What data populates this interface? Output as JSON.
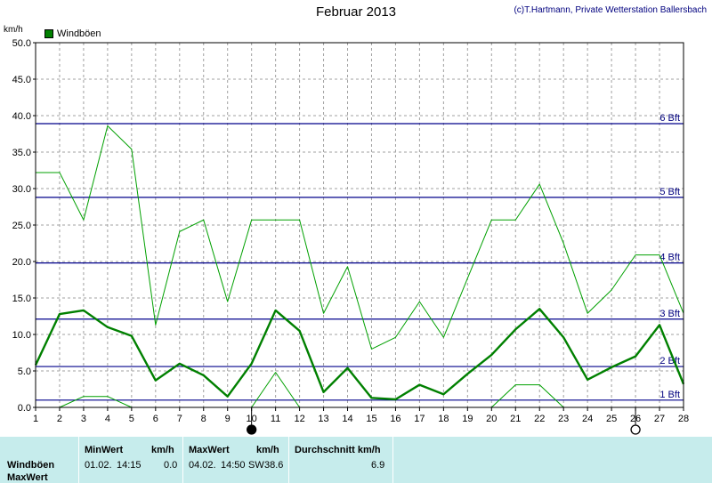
{
  "header": {
    "title": "Februar 2013",
    "credit": "(c)T.Hartmann, Private Wetterstation Ballersbach",
    "unit": "km/h"
  },
  "legend": {
    "label": "Windböen"
  },
  "chart_data": {
    "type": "line",
    "ylabel": "km/h",
    "ylim": [
      0,
      50
    ],
    "yticks": [
      "0.0",
      "5.0",
      "10.0",
      "15.0",
      "20.0",
      "25.0",
      "30.0",
      "35.0",
      "40.0",
      "45.0",
      "50.0"
    ],
    "x": [
      1,
      2,
      3,
      4,
      5,
      6,
      7,
      8,
      9,
      10,
      11,
      12,
      13,
      14,
      15,
      16,
      17,
      18,
      19,
      20,
      21,
      22,
      23,
      24,
      25,
      26,
      27,
      28
    ],
    "xlim": [
      1,
      28
    ],
    "grid": true,
    "legend_position": "top-left",
    "series": [
      {
        "name": "Windböen",
        "role": "max",
        "color": "#00a000",
        "x": [
          1,
          2,
          3,
          4,
          5,
          6,
          7,
          8,
          9,
          10,
          11,
          12,
          13,
          14,
          15,
          16,
          17,
          18,
          19,
          20,
          21,
          22,
          23,
          24,
          25,
          26,
          27,
          28
        ],
        "values": [
          32.2,
          32.2,
          25.7,
          38.6,
          35.4,
          11.3,
          24.1,
          25.7,
          14.5,
          25.7,
          25.7,
          25.7,
          12.9,
          19.3,
          8.0,
          9.6,
          14.5,
          9.6,
          17.7,
          25.7,
          25.7,
          30.6,
          22.5,
          12.9,
          16.1,
          20.9,
          20.9,
          12.9
        ]
      },
      {
        "name": "Windböen",
        "role": "avg",
        "color": "#008000",
        "x": [
          1,
          2,
          3,
          4,
          5,
          6,
          7,
          8,
          9,
          10,
          11,
          12,
          13,
          14,
          15,
          16,
          17,
          18,
          19,
          20,
          21,
          22,
          23,
          24,
          25,
          26,
          27,
          28
        ],
        "values": [
          5.8,
          12.8,
          13.3,
          11.0,
          9.8,
          3.7,
          6.0,
          4.4,
          1.5,
          6.0,
          13.3,
          10.5,
          2.1,
          5.4,
          1.3,
          1.1,
          3.1,
          1.8,
          4.6,
          7.2,
          10.7,
          13.5,
          9.6,
          3.8,
          5.5,
          7.0,
          11.3,
          3.2
        ]
      },
      {
        "name": "Windböen",
        "role": "min",
        "color": "#00a000",
        "x": [
          2,
          3,
          4,
          5
        ],
        "values": [
          0.0,
          1.5,
          1.5,
          0.0
        ]
      },
      {
        "name": "Windböen",
        "role": "min",
        "color": "#00a000",
        "x": [
          10,
          11,
          12
        ],
        "values": [
          0.0,
          4.8,
          0.0
        ]
      },
      {
        "name": "Windböen",
        "role": "min",
        "color": "#00a000",
        "x": [
          20,
          21,
          22,
          23
        ],
        "values": [
          0.0,
          3.1,
          3.1,
          0.0
        ]
      }
    ],
    "reference_lines": [
      {
        "label": "1 Bft",
        "value": 1.0
      },
      {
        "label": "2 Bft",
        "value": 5.6
      },
      {
        "label": "3 Bft",
        "value": 12.1
      },
      {
        "label": "4 Bft",
        "value": 19.8
      },
      {
        "label": "5 Bft",
        "value": 28.8
      },
      {
        "label": "6 Bft",
        "value": 38.9
      }
    ],
    "moon_markers": [
      {
        "x": 10,
        "symbol": "●"
      },
      {
        "x": 26,
        "symbol": "○"
      }
    ]
  },
  "stats": {
    "row1_label": "Windböen",
    "row2_label": "MaxWert",
    "min_header": "MinWert",
    "min_unit": "km/h",
    "min_date": "01.02.",
    "min_time": "14:15",
    "min_value": "0.0",
    "max_header": "MaxWert",
    "max_unit": "km/h",
    "max_date": "04.02.",
    "max_time": "14:50",
    "max_dir": "SW",
    "max_value": "38.6",
    "avg_header": "Durchschnitt km/h",
    "avg_value": "6.9"
  }
}
